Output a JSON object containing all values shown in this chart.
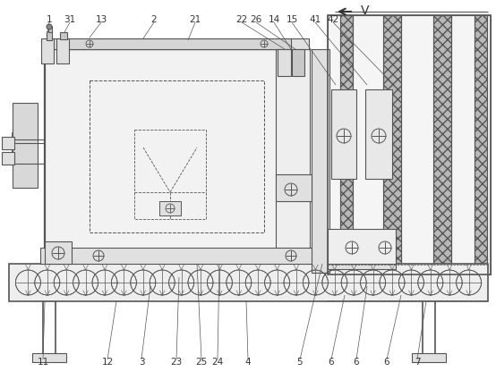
{
  "bg_color": "#ffffff",
  "lc": "#555555",
  "lc_dark": "#333333",
  "fill_light": "#f0f0f0",
  "fill_mid": "#e0e0e0",
  "fill_dark": "#c8c8c8",
  "fill_box": "#ebebeb",
  "hatch_fill": "#d0d0d0",
  "top_labels": [
    [
      "1",
      55,
      22
    ],
    [
      "31",
      78,
      22
    ],
    [
      "13",
      113,
      22
    ],
    [
      "2",
      172,
      22
    ],
    [
      "21",
      218,
      22
    ],
    [
      "22",
      270,
      22
    ],
    [
      "26",
      286,
      22
    ],
    [
      "14",
      306,
      22
    ],
    [
      "15",
      326,
      22
    ],
    [
      "41",
      352,
      22
    ],
    [
      "42",
      372,
      22
    ]
  ],
  "bot_labels": [
    [
      "11",
      48,
      405
    ],
    [
      "12",
      120,
      405
    ],
    [
      "3",
      158,
      405
    ],
    [
      "23",
      197,
      405
    ],
    [
      "25",
      225,
      405
    ],
    [
      "24",
      243,
      405
    ],
    [
      "4",
      277,
      405
    ],
    [
      "5",
      335,
      405
    ],
    [
      "6",
      370,
      405
    ],
    [
      "6",
      398,
      405
    ],
    [
      "6",
      432,
      405
    ],
    [
      "7",
      466,
      405
    ]
  ]
}
